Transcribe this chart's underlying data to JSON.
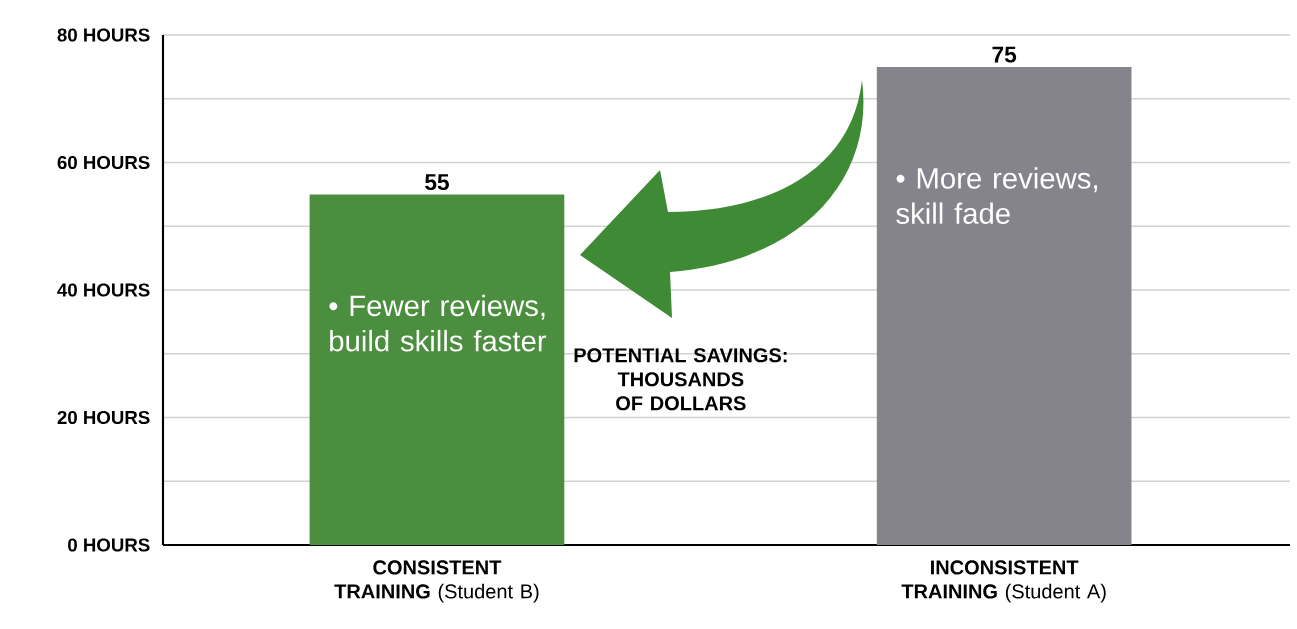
{
  "chart_data": {
    "type": "bar",
    "categories": [
      "**CONSISTENT TRAINING** (Student B)",
      "**INCONSISTENT TRAINING** (Student A)"
    ],
    "values": [
      55,
      75
    ],
    "colors": [
      "#4b8e3f",
      "#85848d"
    ],
    "ylim": [
      0,
      80
    ],
    "yticks": [
      {
        "value": 0,
        "label": "0 HOURS"
      },
      {
        "value": 10,
        "label": null
      },
      {
        "value": 20,
        "label": "20 HOURS"
      },
      {
        "value": 30,
        "label": null
      },
      {
        "value": 40,
        "label": "40 HOURS"
      },
      {
        "value": 50,
        "label": null
      },
      {
        "value": 60,
        "label": "60 HOURS"
      },
      {
        "value": 70,
        "label": null
      },
      {
        "value": 80,
        "label": "80 HOURS"
      }
    ],
    "grid": "y",
    "data_labels": true,
    "annotations": [
      "• Fewer reviews, build skills faster",
      "• More reviews, skill fade",
      "POTENTIAL SAVINGS: THOUSANDS OF DOLLARS"
    ]
  }
}
